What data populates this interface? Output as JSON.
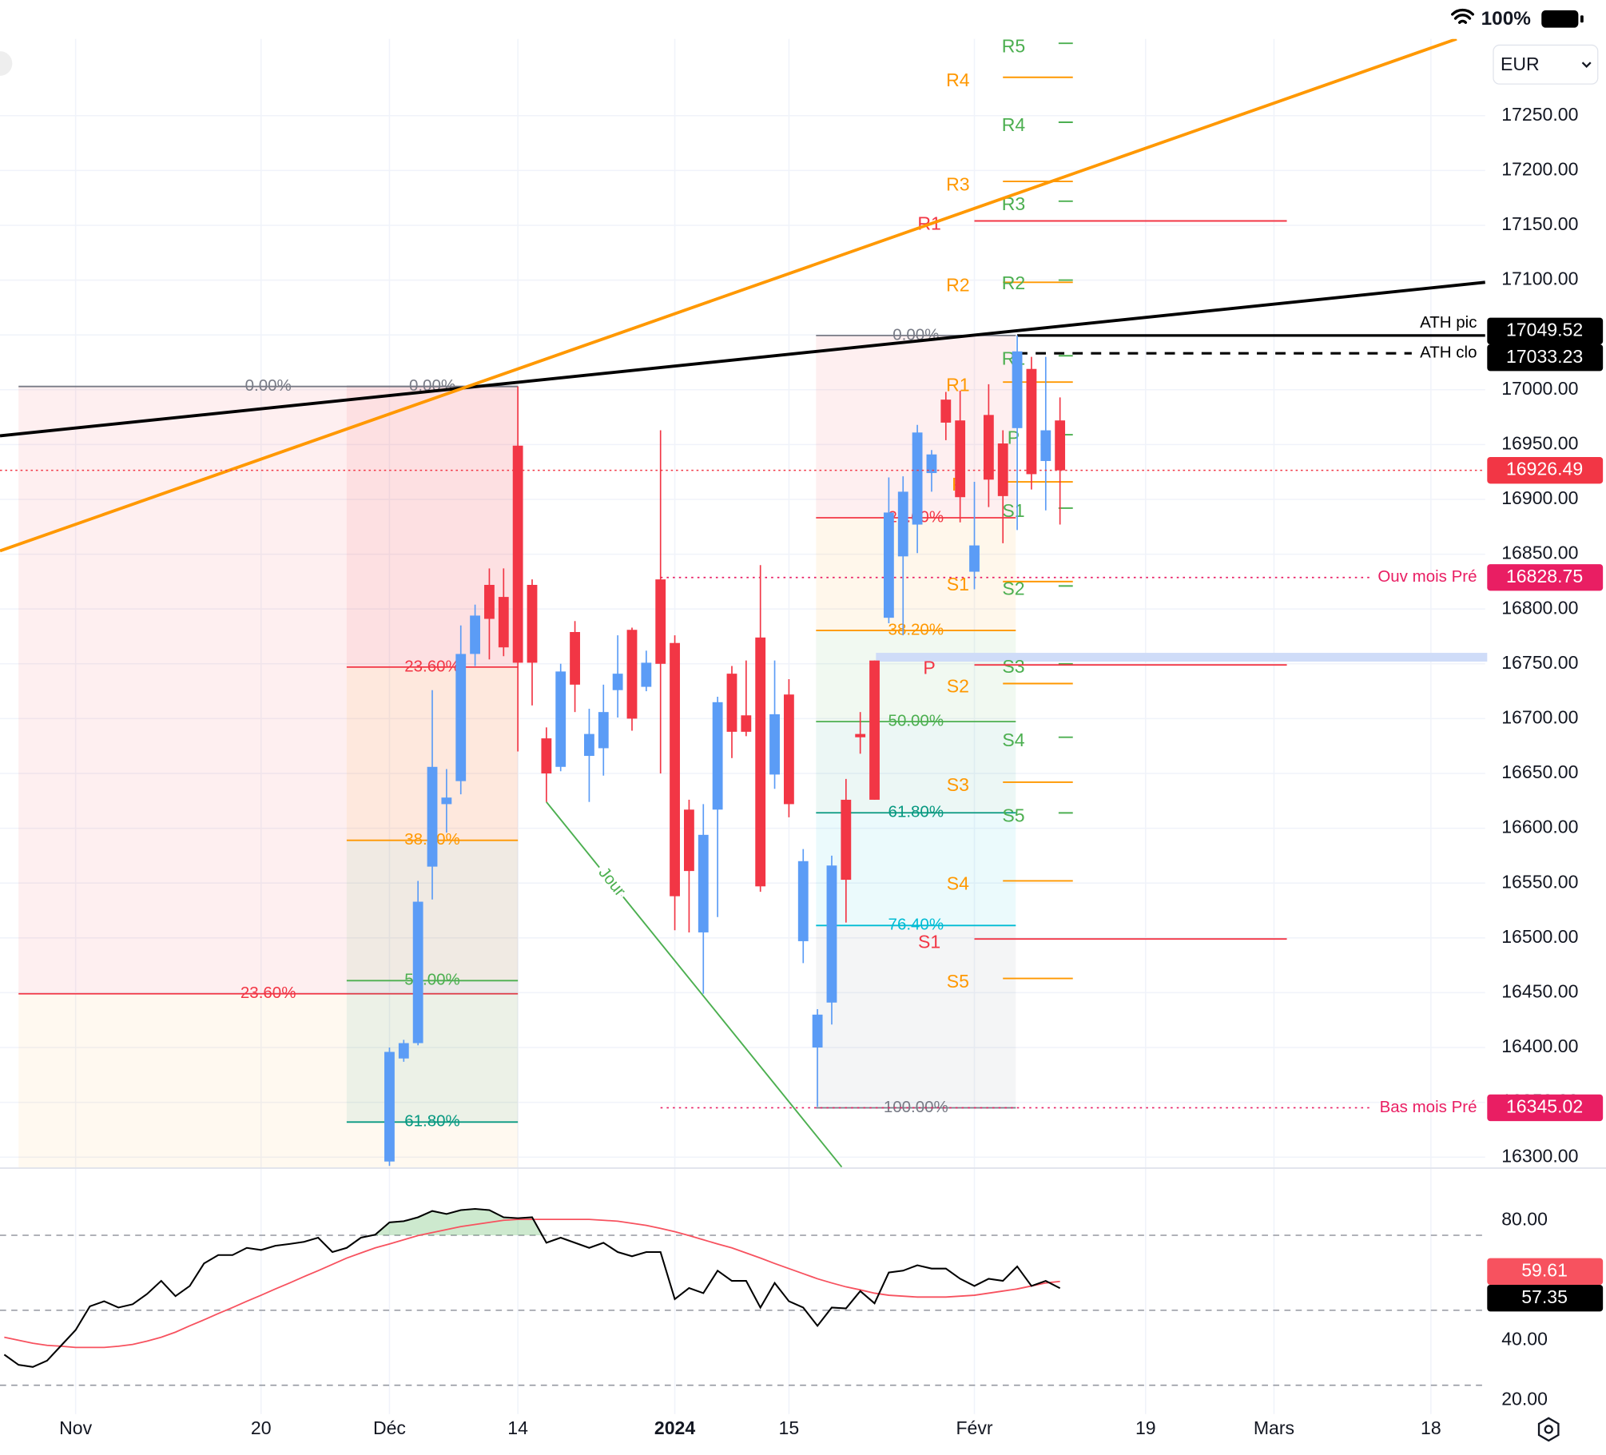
{
  "ui": {
    "battery": "100%",
    "currency": "EUR"
  },
  "chart_data": [
    {
      "type": "candlestick",
      "xlim": [
        -27.3,
        76.8
      ],
      "ylim": [
        16290,
        17320
      ],
      "grid": true,
      "up_color": "#5b9cf6",
      "down_color": "#f23645",
      "yticks": [
        {
          "value": 16300,
          "label": "16300.00"
        },
        {
          "value": 16350,
          "label": "16350.00"
        },
        {
          "value": 16400,
          "label": "16400.00"
        },
        {
          "value": 16450,
          "label": "16450.00"
        },
        {
          "value": 16500,
          "label": "16500.00"
        },
        {
          "value": 16550,
          "label": "16550.00"
        },
        {
          "value": 16600,
          "label": "16600.00"
        },
        {
          "value": 16650,
          "label": "16650.00"
        },
        {
          "value": 16700,
          "label": "16700.00"
        },
        {
          "value": 16750,
          "label": "16750.00"
        },
        {
          "value": 16800,
          "label": "16800.00"
        },
        {
          "value": 16850,
          "label": "16850.00"
        },
        {
          "value": 16900,
          "label": "16900.00"
        },
        {
          "value": 16950,
          "label": "16950.00"
        },
        {
          "value": 17000,
          "label": "17000.00"
        },
        {
          "value": 17050,
          "label": "17050.00"
        },
        {
          "value": 17100,
          "label": "17100.00"
        },
        {
          "value": 17150,
          "label": "17150.00"
        },
        {
          "value": 17200,
          "label": "17200.00"
        },
        {
          "value": 17250,
          "label": "17250.00"
        }
      ],
      "x": [
        0,
        1,
        2,
        3,
        4,
        5,
        6,
        7,
        8,
        9,
        10,
        11,
        12,
        13,
        14,
        15,
        16,
        17,
        18,
        19,
        20,
        21,
        22,
        23,
        24,
        25,
        26,
        27,
        28,
        29,
        30,
        31,
        32,
        33,
        34,
        35,
        36,
        37,
        38,
        39,
        40,
        41,
        42,
        43,
        44,
        45,
        46,
        47
      ],
      "open": [
        16296,
        16390,
        16404,
        16565,
        16622,
        16643,
        16759,
        16822,
        16811,
        16949,
        16822,
        16682,
        16656,
        16779,
        16666,
        16673,
        16726,
        16781,
        16729,
        16827,
        16769,
        16617,
        16505,
        16617,
        16741,
        16703,
        16774,
        16649,
        16722,
        16497,
        16400,
        16441,
        16626,
        16686,
        16753,
        16792,
        16848,
        16877,
        16924,
        16991,
        16972,
        16834,
        16977,
        16951,
        16965,
        17019,
        16935,
        16972
      ],
      "high": [
        16400,
        16407,
        16552,
        16726,
        16654,
        16785,
        16804,
        16837,
        16837,
        17003,
        16827,
        16692,
        16750,
        16789,
        16709,
        16731,
        16776,
        16783,
        16762,
        16963,
        16776,
        16626,
        16622,
        16720,
        16748,
        16753,
        16840,
        16753,
        16736,
        16581,
        16435,
        16575,
        16645,
        16706,
        16753,
        16920,
        16921,
        16968,
        16945,
        16998,
        16999,
        16916,
        17005,
        16963,
        17049.52,
        17030,
        17030,
        16993
      ],
      "low": [
        16292,
        16387,
        16402,
        16535,
        16596,
        16631,
        16748,
        16754,
        16757,
        16670,
        16712,
        16624,
        16652,
        16706,
        16624,
        16648,
        16701,
        16689,
        16725,
        16650,
        16507,
        16505,
        16449,
        16519,
        16664,
        16684,
        16542,
        16636,
        16610,
        16477,
        16346,
        16421,
        16514,
        16668,
        16626,
        16787,
        16776,
        16851,
        16907,
        16954,
        16879,
        16818,
        16893,
        16860,
        16872,
        16909,
        16890,
        16877
      ],
      "close": [
        16396,
        16404,
        16533,
        16656,
        16628,
        16759,
        16794,
        16791,
        16765,
        16751,
        16751,
        16650,
        16743,
        16731,
        16686,
        16706,
        16741,
        16700,
        16751,
        16750,
        16538,
        16561,
        16594,
        16715,
        16688,
        16688,
        16547,
        16704,
        16622,
        16570,
        16430,
        16566,
        16553,
        16683,
        16626,
        16888,
        16907,
        16961,
        16941,
        16970,
        16902,
        16858,
        16918,
        16903,
        17035,
        16923,
        16963,
        16926.49
      ],
      "fibs": [
        {
          "from": -26,
          "to": 9,
          "tail_color": "#ff9800",
          "levels": [
            {
              "label": "0.00%",
              "value": 17003,
              "color": "#787b86"
            },
            {
              "label": "23.60%",
              "value": 16449,
              "color": "#f23645"
            }
          ]
        },
        {
          "from": -3,
          "to": 9,
          "levels": [
            {
              "label": "0.00%",
              "value": 17003,
              "color": "#787b86"
            },
            {
              "label": "23.60%",
              "value": 16747,
              "color": "#f23645"
            },
            {
              "label": "38.20%",
              "value": 16589,
              "color": "#ff9800"
            },
            {
              "label": "50.00%",
              "value": 16461,
              "color": "#4caf50"
            },
            {
              "label": "61.80%",
              "value": 16332,
              "color": "#089981"
            }
          ]
        },
        {
          "from": 29.9,
          "to": 43.9,
          "levels": [
            {
              "label": "0.00%",
              "value": 17049.52,
              "color": "#787b86"
            },
            {
              "label": "23.60%",
              "value": 16883.2,
              "color": "#f23645"
            },
            {
              "label": "38.20%",
              "value": 16780.4,
              "color": "#ff9800"
            },
            {
              "label": "50.00%",
              "value": 16697.3,
              "color": "#4caf50"
            },
            {
              "label": "61.80%",
              "value": 16614.1,
              "color": "#089981"
            },
            {
              "label": "76.40%",
              "value": 16511.3,
              "color": "#00bcd4"
            },
            {
              "label": "100.00%",
              "value": 16345,
              "color": "#787b86"
            }
          ]
        }
      ],
      "highlight": {
        "from": 34.1,
        "to": 77,
        "low": 16752,
        "high": 16760,
        "color": "#cfdcf8"
      },
      "pivots": [
        {
          "color": "#ff9800",
          "from": 43,
          "to": 47.9,
          "levels": [
            {
              "label": "R4",
              "value": 17285
            },
            {
              "label": "R3",
              "value": 17190
            },
            {
              "label": "R2",
              "value": 17098
            },
            {
              "label": "R1",
              "value": 17007
            },
            {
              "label": "P",
              "value": 16916
            },
            {
              "label": "S1",
              "value": 16825
            },
            {
              "label": "S2",
              "value": 16732
            },
            {
              "label": "S3",
              "value": 16642
            },
            {
              "label": "S4",
              "value": 16552
            },
            {
              "label": "S5",
              "value": 16463
            }
          ]
        },
        {
          "color": "#4caf50",
          "from": 46.9,
          "to": 47.9,
          "levels": [
            {
              "label": "R5",
              "value": 17316
            },
            {
              "label": "R4",
              "value": 17244
            },
            {
              "label": "R3",
              "value": 17172
            },
            {
              "label": "R2",
              "value": 17100
            },
            {
              "label": "R1",
              "value": 17031
            },
            {
              "label": "P",
              "value": 16959
            },
            {
              "label": "S1",
              "value": 16892
            },
            {
              "label": "S2",
              "value": 16821
            },
            {
              "label": "S3",
              "value": 16750
            },
            {
              "label": "S4",
              "value": 16683
            },
            {
              "label": "S5",
              "value": 16614
            }
          ]
        },
        {
          "color": "#f23645",
          "from": 41,
          "to": 62.9,
          "levels": [
            {
              "label": "R1",
              "value": 17154
            },
            {
              "label": "P",
              "value": 16749
            },
            {
              "label": "S1",
              "value": 16499
            }
          ]
        }
      ],
      "trendlines": [
        {
          "color": "#000000",
          "width": 3,
          "points": [
            {
              "x": -27.3,
              "y": 16958
            },
            {
              "x": 76.8,
              "y": 17098
            }
          ]
        },
        {
          "color": "#ff9800",
          "width": 3,
          "points": [
            {
              "x": -27.3,
              "y": 16853
            },
            {
              "x": 74.8,
              "y": 17320
            }
          ]
        },
        {
          "label": "Jour",
          "color": "#4caf50",
          "width": 1.5,
          "points": [
            {
              "x": 11,
              "y": 16624
            },
            {
              "x": 31.7,
              "y": 16291
            }
          ]
        }
      ],
      "price_lines": [
        {
          "label": "ATH pic",
          "value": 17049.52,
          "color": "#000000",
          "style": "solid",
          "from": 44
        },
        {
          "label": "ATH clo",
          "value": 17033.23,
          "color": "#000000",
          "style": "dashed",
          "from": 44
        },
        {
          "label": "Ouv mois Pré",
          "value": 16828.75,
          "color": "#e91e63",
          "style": "dotted",
          "from": 19
        },
        {
          "label": "Bas mois Pré",
          "value": 16345.02,
          "color": "#e91e63",
          "style": "dotted",
          "from": 19
        }
      ]
    },
    {
      "type": "line",
      "xlim": [
        -27.3,
        76.8
      ],
      "ylim": [
        15.4,
        97.4
      ],
      "grid": true,
      "yticks": [
        {
          "value": 80,
          "label": "80.00"
        },
        {
          "value": 40,
          "label": "40.00"
        },
        {
          "value": 20,
          "label": "20.00"
        }
      ],
      "bands": [
        75,
        50,
        25
      ],
      "xticks": [
        {
          "value": -22,
          "label": "Nov"
        },
        {
          "value": -9,
          "label": "20"
        },
        {
          "value": 0,
          "label": "Déc"
        },
        {
          "value": 9,
          "label": "14"
        },
        {
          "value": 20,
          "label": "2024",
          "bold": true
        },
        {
          "value": 28,
          "label": "15"
        },
        {
          "value": 41,
          "label": "Févr"
        },
        {
          "value": 53,
          "label": "19"
        },
        {
          "value": 62,
          "label": "Mars"
        },
        {
          "value": 73,
          "label": "18"
        }
      ],
      "x": [
        -27,
        -26,
        -25,
        -24,
        -23,
        -22,
        -21,
        -20,
        -19,
        -18,
        -17,
        -16,
        -15,
        -14,
        -13,
        -12,
        -11,
        -10,
        -9,
        -8,
        -7,
        -6,
        -5,
        -4,
        -3,
        -2,
        -1,
        0,
        1,
        2,
        3,
        4,
        5,
        6,
        7,
        8,
        9,
        10,
        11,
        12,
        13,
        14,
        15,
        16,
        17,
        18,
        19,
        20,
        21,
        22,
        23,
        24,
        25,
        26,
        27,
        28,
        29,
        30,
        31,
        32,
        33,
        34,
        35,
        36,
        37,
        38,
        39,
        40,
        41,
        42,
        43,
        44,
        45,
        46,
        47
      ],
      "series": [
        {
          "color": "#000000",
          "values": [
            35.2,
            31.8,
            31.1,
            33.2,
            38.3,
            43.4,
            51.3,
            53.0,
            50.9,
            52.0,
            55.4,
            59.8,
            54.7,
            58.1,
            65.6,
            68.4,
            68.4,
            70.8,
            70.1,
            71.5,
            72.1,
            72.8,
            74.2,
            69.4,
            70.8,
            74.2,
            75.2,
            79.3,
            79.7,
            81.0,
            83.1,
            82.1,
            83.4,
            83.8,
            83.4,
            81.0,
            80.7,
            81.0,
            72.5,
            74.2,
            72.5,
            70.8,
            72.5,
            69.4,
            68.0,
            69.4,
            69.4,
            53.7,
            57.4,
            55.7,
            63.2,
            59.8,
            59.8,
            50.9,
            59.1,
            53.0,
            50.9,
            44.8,
            50.9,
            50.6,
            56.4,
            52.3,
            62.6,
            63.2,
            65.0,
            63.9,
            63.9,
            60.5,
            58.1,
            60.5,
            59.8,
            64.6,
            58.1,
            59.8,
            57.35
          ]
        },
        {
          "color": "#f7525f",
          "values": [
            41.0,
            40.0,
            39.0,
            38.3,
            38.0,
            37.6,
            37.6,
            37.6,
            38.0,
            38.6,
            39.7,
            41.0,
            42.7,
            44.8,
            46.8,
            48.9,
            50.9,
            53.0,
            55.0,
            57.1,
            59.1,
            61.2,
            63.2,
            65.3,
            67.4,
            69.1,
            70.8,
            72.1,
            73.5,
            74.9,
            75.9,
            76.9,
            77.9,
            78.6,
            79.3,
            80.0,
            80.3,
            80.3,
            80.3,
            80.3,
            80.3,
            80.3,
            80.0,
            79.7,
            79.0,
            78.3,
            77.3,
            76.2,
            74.9,
            73.5,
            72.1,
            70.8,
            69.1,
            67.4,
            65.6,
            63.9,
            62.2,
            60.5,
            59.1,
            57.8,
            56.8,
            55.7,
            55.0,
            54.7,
            54.4,
            54.4,
            54.4,
            54.7,
            55.0,
            55.7,
            56.4,
            57.1,
            58.1,
            59.1,
            59.61
          ]
        }
      ]
    }
  ]
}
